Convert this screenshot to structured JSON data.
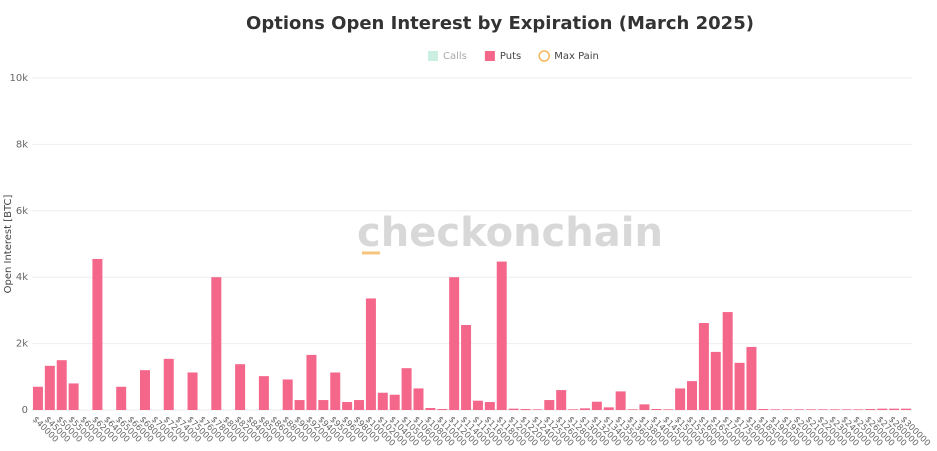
{
  "chart_data": {
    "type": "bar",
    "title": "Options Open Interest by Expiration (March 2025)",
    "y_label": "Open Interest [BTC]",
    "watermark": "checkonchain",
    "categories": [
      "$40000",
      "$45000",
      "$50000",
      "$55000",
      "$60000",
      "$62000",
      "$64000",
      "$65000",
      "$66000",
      "$68000",
      "$70000",
      "$72000",
      "$74000",
      "$75000",
      "$76000",
      "$78000",
      "$80000",
      "$82000",
      "$84000",
      "$85000",
      "$86000",
      "$88000",
      "$90000",
      "$92000",
      "$94000",
      "$95000",
      "$96000",
      "$98000",
      "$100000",
      "$102000",
      "$104000",
      "$105000",
      "$106000",
      "$108000",
      "$110000",
      "$112000",
      "$114000",
      "$115000",
      "$116000",
      "$118000",
      "$120000",
      "$122000",
      "$124000",
      "$125000",
      "$126000",
      "$128000",
      "$130000",
      "$132000",
      "$134000",
      "$135000",
      "$136000",
      "$138000",
      "$140000",
      "$145000",
      "$150000",
      "$155000",
      "$160000",
      "$165000",
      "$170000",
      "$175000",
      "$180000",
      "$185000",
      "$190000",
      "$195000",
      "$200000",
      "$210000",
      "$220000",
      "$230000",
      "$240000",
      "$250000",
      "$260000",
      "$270000",
      "$280000",
      "$300000"
    ],
    "series": [
      {
        "name": "Calls",
        "color": "#a8e6cf",
        "visible": false,
        "values": [
          null,
          null,
          null,
          null,
          null,
          null,
          null,
          null,
          null,
          null,
          null,
          null,
          null,
          null,
          null,
          null,
          null,
          null,
          null,
          null,
          null,
          null,
          null,
          null,
          null,
          null,
          null,
          null,
          null,
          null,
          null,
          null,
          null,
          null,
          null,
          null,
          null,
          null,
          null,
          null,
          null,
          null,
          null,
          null,
          null,
          null,
          null,
          null,
          null,
          null,
          null,
          null,
          null,
          null,
          null,
          null,
          null,
          null,
          null,
          null,
          null,
          null,
          null,
          null,
          null,
          null,
          null,
          null,
          null,
          null,
          null,
          null,
          null,
          null
        ]
      },
      {
        "name": "Puts",
        "color": "#f4668a",
        "values": [
          700,
          1330,
          1500,
          800,
          0,
          4550,
          0,
          700,
          0,
          1200,
          0,
          1540,
          0,
          1130,
          0,
          4000,
          0,
          1380,
          0,
          1020,
          0,
          920,
          300,
          1660,
          300,
          1130,
          240,
          300,
          3360,
          520,
          460,
          1260,
          650,
          60,
          30,
          4000,
          2560,
          280,
          240,
          4470,
          40,
          30,
          20,
          300,
          600,
          20,
          50,
          250,
          80,
          560,
          20,
          170,
          30,
          20,
          650,
          870,
          2620,
          1750,
          2950,
          1420,
          1900,
          30,
          20,
          20,
          20,
          20,
          20,
          20,
          20,
          20,
          30,
          40,
          40,
          40
        ]
      },
      {
        "name": "Max Pain",
        "color": "#f5b75a",
        "marker": "line",
        "values": [
          null,
          null,
          null,
          null,
          null,
          null,
          null,
          null,
          null,
          null,
          null,
          null,
          null,
          null,
          null,
          null,
          null,
          null,
          null,
          null,
          null,
          null,
          null,
          null,
          null,
          null,
          null,
          null,
          4730,
          null,
          null,
          null,
          null,
          null,
          null,
          null,
          null,
          null,
          null,
          null,
          null,
          null,
          null,
          null,
          null,
          null,
          null,
          null,
          null,
          null,
          null,
          null,
          null,
          null,
          null,
          null,
          null,
          null,
          null,
          null,
          null,
          null,
          null,
          null,
          null,
          null,
          null,
          null,
          null,
          null,
          null,
          null,
          null,
          null
        ]
      }
    ],
    "ylim": [
      0,
      10000
    ],
    "yticks": [
      0,
      {
        "value": 2000,
        "label": "2k"
      },
      {
        "value": 4000,
        "label": "4k"
      },
      {
        "value": 6000,
        "label": "6k"
      },
      {
        "value": 8000,
        "label": "8k"
      },
      {
        "value": 10000,
        "label": "10k"
      }
    ],
    "grid": true
  }
}
